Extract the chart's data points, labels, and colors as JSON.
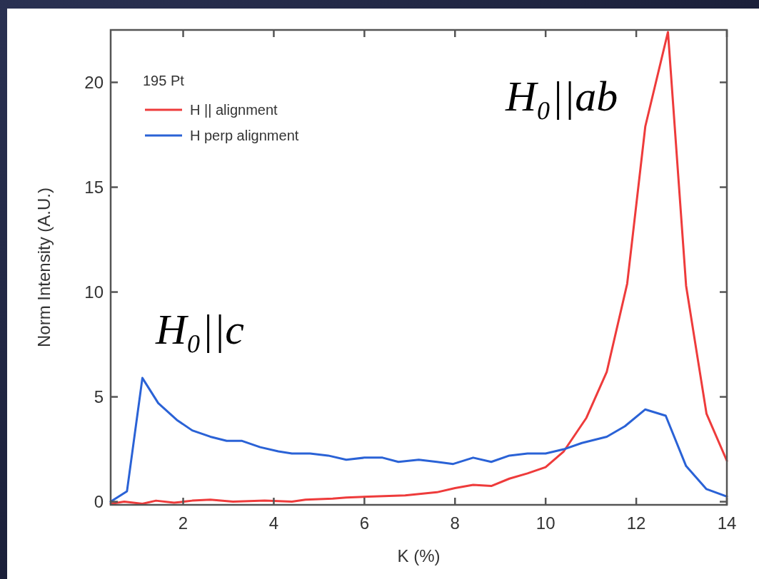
{
  "chart_data": {
    "type": "line",
    "xlabel": "K (%)",
    "ylabel": "Norm Intensity (A.U.)",
    "legend_title": "195 Pt",
    "legend": "top left",
    "grid": false,
    "marker": "none",
    "line_style": "solid",
    "xlim": [
      0.4,
      14
    ],
    "xticks": [
      2,
      4,
      6,
      8,
      10,
      12,
      14
    ],
    "ylim": [
      -0.15,
      22.5
    ],
    "yticks": [
      0,
      5,
      10,
      15,
      20
    ],
    "annotations": [
      "H₀||ab",
      "H₀||c"
    ],
    "series": [
      {
        "name": "H || alignment",
        "color": "#ee3b3b",
        "x": [
          0.4,
          0.7,
          1.1,
          1.4,
          1.8,
          2.2,
          2.6,
          3.1,
          3.8,
          4.4,
          4.7,
          5.3,
          5.6,
          6.2,
          6.9,
          7.6,
          8.0,
          8.4,
          8.8,
          9.2,
          9.6,
          10.0,
          10.4,
          10.9,
          11.35,
          11.8,
          12.2,
          12.7,
          13.1,
          13.55,
          14
        ],
        "values": [
          -0.1,
          0,
          -0.1,
          0.05,
          -0.05,
          0.05,
          0.1,
          0,
          0.05,
          0,
          0.1,
          0.15,
          0.2,
          0.25,
          0.3,
          0.45,
          0.65,
          0.8,
          0.75,
          1.1,
          1.35,
          1.65,
          2.4,
          4.0,
          6.2,
          10.4,
          17.9,
          22.4,
          10.3,
          4.2,
          1.95
        ]
      },
      {
        "name": "H perp alignment",
        "color": "#2a62d6",
        "x": [
          0.4,
          0.76,
          1.1,
          1.45,
          1.86,
          2.2,
          2.6,
          2.96,
          3.3,
          3.7,
          4.1,
          4.4,
          4.8,
          5.2,
          5.6,
          6.0,
          6.4,
          6.75,
          7.2,
          7.6,
          7.96,
          8.4,
          8.8,
          9.2,
          9.6,
          10.0,
          10.4,
          10.8,
          11.35,
          11.75,
          12.2,
          12.65,
          13.1,
          13.55,
          14
        ],
        "values": [
          0,
          0.5,
          5.9,
          4.7,
          3.9,
          3.4,
          3.1,
          2.9,
          2.9,
          2.6,
          2.4,
          2.3,
          2.3,
          2.2,
          2.0,
          2.1,
          2.1,
          1.9,
          2.0,
          1.9,
          1.8,
          2.1,
          1.9,
          2.2,
          2.3,
          2.3,
          2.5,
          2.8,
          3.1,
          3.6,
          4.4,
          4.1,
          1.7,
          0.6,
          0.25
        ]
      }
    ]
  }
}
